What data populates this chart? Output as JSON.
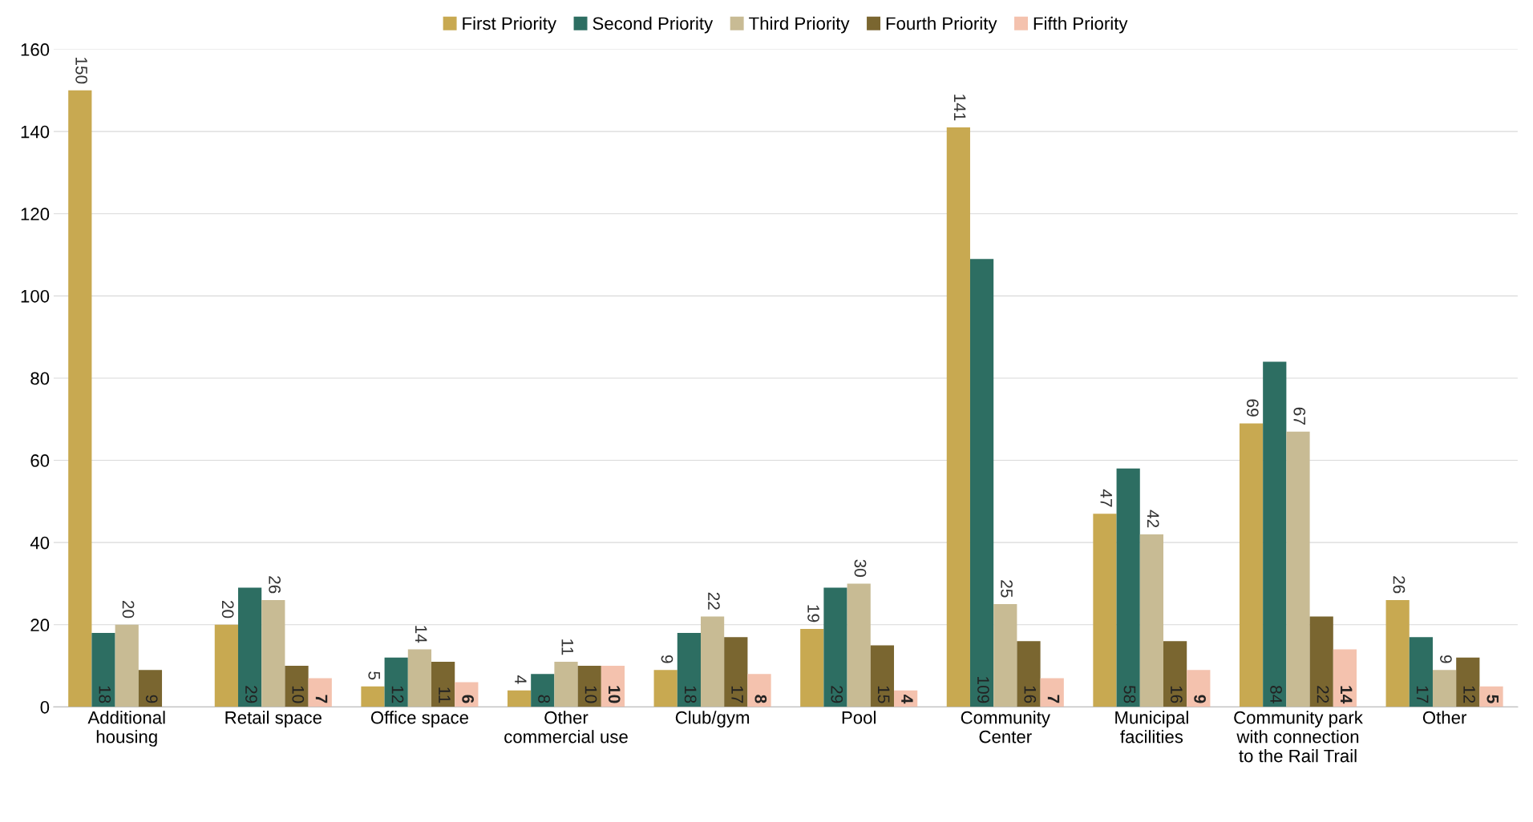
{
  "chart_data": {
    "type": "bar",
    "categories": [
      "Additional\nhousing",
      "Retail space",
      "Office space",
      "Other\ncommercial use",
      "Club/gym",
      "Pool",
      "Community\nCenter",
      "Municipal\nfacilities",
      "Community park\nwith connection\nto the Rail Trail",
      "Other"
    ],
    "series": [
      {
        "name": "First Priority",
        "color": "#c8a951",
        "values": [
          150,
          20,
          5,
          4,
          9,
          19,
          141,
          47,
          69,
          26
        ]
      },
      {
        "name": "Second Priority",
        "color": "#2d6e62",
        "values": [
          18,
          29,
          12,
          8,
          18,
          29,
          109,
          58,
          84,
          17
        ]
      },
      {
        "name": "Third Priority",
        "color": "#c8bb94",
        "values": [
          20,
          26,
          14,
          11,
          22,
          30,
          25,
          42,
          67,
          9
        ]
      },
      {
        "name": "Fourth Priority",
        "color": "#7a6630",
        "values": [
          9,
          10,
          11,
          10,
          17,
          15,
          16,
          16,
          22,
          12
        ]
      },
      {
        "name": "Fifth Priority",
        "color": "#f4c2ae",
        "values": [
          null,
          7,
          6,
          10,
          8,
          4,
          7,
          9,
          14,
          5
        ]
      }
    ],
    "ylim": [
      0,
      160
    ],
    "yticks": [
      0,
      20,
      40,
      60,
      80,
      100,
      120,
      140,
      160
    ],
    "grid": "y",
    "legend": "top",
    "data_labels": true
  }
}
